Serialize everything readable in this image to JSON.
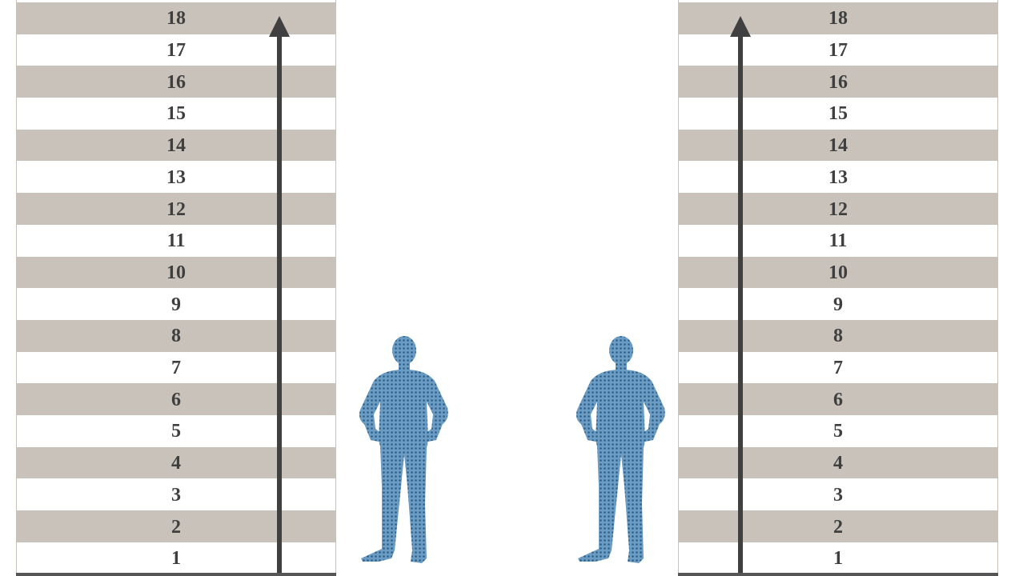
{
  "left_scale": {
    "levels": [
      "18",
      "17",
      "16",
      "15",
      "14",
      "13",
      "12",
      "11",
      "10",
      "9",
      "8",
      "7",
      "6",
      "5",
      "4",
      "3",
      "2",
      "1"
    ]
  },
  "right_scale": {
    "levels": [
      "18",
      "17",
      "16",
      "15",
      "14",
      "13",
      "12",
      "11",
      "10",
      "9",
      "8",
      "7",
      "6",
      "5",
      "4",
      "3",
      "2",
      "1"
    ]
  },
  "colors": {
    "stripe": "#c8c2bb",
    "label": "#3f3f3f",
    "arrow": "#404040",
    "figure": "#5b8fb9",
    "figure_dots": "#3a6e98",
    "ground": "#555555"
  },
  "figures": [
    "standing-person-icon",
    "standing-person-icon"
  ]
}
